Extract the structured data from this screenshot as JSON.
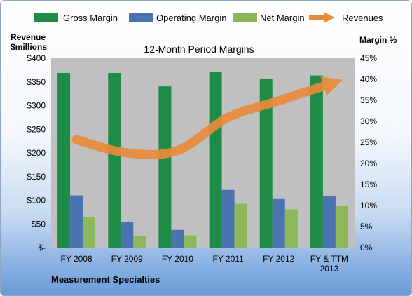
{
  "chart_data": {
    "type": "bar",
    "title": "12-Month Period Margins",
    "company": "Measurement Specialties",
    "categories": [
      "FY 2008",
      "FY 2009",
      "FY 2010",
      "FY 2011",
      "FY 2012",
      "FY & TTM 2013"
    ],
    "left_axis": {
      "title_line1": "Revenue",
      "title_line2": "$millions",
      "range": [
        0,
        400
      ],
      "ticks": [
        {
          "value": 0,
          "label": "$-"
        },
        {
          "value": 50,
          "label": "$50"
        },
        {
          "value": 100,
          "label": "$100"
        },
        {
          "value": 150,
          "label": "$150"
        },
        {
          "value": 200,
          "label": "$200"
        },
        {
          "value": 250,
          "label": "$250"
        },
        {
          "value": 300,
          "label": "$300"
        },
        {
          "value": 350,
          "label": "$350"
        },
        {
          "value": 400,
          "label": "$400"
        }
      ]
    },
    "right_axis": {
      "title": "Margin %",
      "range": [
        0,
        45
      ],
      "ticks": [
        {
          "value": 0,
          "label": "0%"
        },
        {
          "value": 5,
          "label": "5%"
        },
        {
          "value": 10,
          "label": "10%"
        },
        {
          "value": 15,
          "label": "15%"
        },
        {
          "value": 20,
          "label": "20%"
        },
        {
          "value": 25,
          "label": "25%"
        },
        {
          "value": 30,
          "label": "30%"
        },
        {
          "value": 35,
          "label": "35%"
        },
        {
          "value": 40,
          "label": "40%"
        },
        {
          "value": 45,
          "label": "45%"
        }
      ]
    },
    "series": [
      {
        "name": "Gross Margin",
        "axis": "right",
        "kind": "bar",
        "color": "#1e8b46",
        "values": [
          41.5,
          41.5,
          38.3,
          41.7,
          40.0,
          40.9
        ]
      },
      {
        "name": "Operating Margin",
        "axis": "right",
        "kind": "bar",
        "color": "#4a73b0",
        "values": [
          12.4,
          6.1,
          4.2,
          13.7,
          11.7,
          12.2
        ]
      },
      {
        "name": "Net Margin",
        "axis": "right",
        "kind": "bar",
        "color": "#8db85a",
        "values": [
          7.3,
          2.7,
          2.9,
          10.4,
          9.1,
          10.0
        ]
      },
      {
        "name": "Revenues",
        "axis": "left",
        "kind": "line",
        "color": "#e98a3c",
        "values": [
          228,
          200,
          205,
          275,
          310,
          345
        ]
      }
    ],
    "legend_position": "top",
    "grid": false,
    "plot_area_color": "#c0c0c0"
  }
}
